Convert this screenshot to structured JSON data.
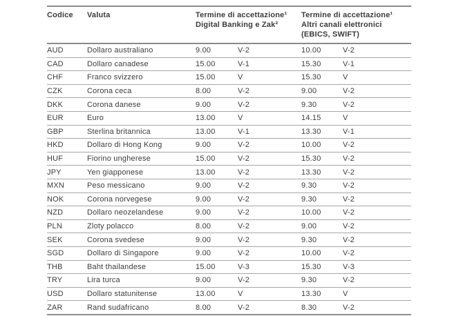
{
  "table": {
    "header": {
      "codice": "Codice",
      "valuta": "Valuta",
      "digital_line1": "Termine di accettazione¹",
      "digital_line2": "Digital Banking e Zak²",
      "other_line1": "Termine di accettazione¹",
      "other_line2": "Altri canali elettronici",
      "other_line3": "(EBICS, SWIFT)"
    },
    "column_keys": [
      "code",
      "currency",
      "digital_time",
      "digital_value",
      "other_time",
      "other_value"
    ],
    "rows": [
      {
        "code": "AUD",
        "currency": "Dollaro australiano",
        "digital_time": "9.00",
        "digital_value": "V-2",
        "other_time": "10.00",
        "other_value": "V-2"
      },
      {
        "code": "CAD",
        "currency": "Dollaro canadese",
        "digital_time": "15.00",
        "digital_value": "V-1",
        "other_time": "15.30",
        "other_value": "V-1"
      },
      {
        "code": "CHF",
        "currency": "Franco svizzero",
        "digital_time": "15.00",
        "digital_value": "V",
        "other_time": "15.30",
        "other_value": "V"
      },
      {
        "code": "CZK",
        "currency": "Corona ceca",
        "digital_time": "8.00",
        "digital_value": "V-2",
        "other_time": "9.00",
        "other_value": "V-2"
      },
      {
        "code": "DKK",
        "currency": "Corona danese",
        "digital_time": "9.00",
        "digital_value": "V-2",
        "other_time": "9.30",
        "other_value": "V-2"
      },
      {
        "code": "EUR",
        "currency": "Euro",
        "digital_time": "13.00",
        "digital_value": "V",
        "other_time": "14.15",
        "other_value": "V"
      },
      {
        "code": "GBP",
        "currency": "Sterlina britannica",
        "digital_time": "13.00",
        "digital_value": "V-1",
        "other_time": "13.30",
        "other_value": "V-1"
      },
      {
        "code": "HKD",
        "currency": "Dollaro di Hong Kong",
        "digital_time": "9.00",
        "digital_value": "V-2",
        "other_time": "10.00",
        "other_value": "V-2"
      },
      {
        "code": "HUF",
        "currency": "Fiorino ungherese",
        "digital_time": "15.00",
        "digital_value": "V-2",
        "other_time": "15.30",
        "other_value": "V-2"
      },
      {
        "code": "JPY",
        "currency": "Yen giapponese",
        "digital_time": "13.00",
        "digital_value": "V-2",
        "other_time": "13.30",
        "other_value": "V-2"
      },
      {
        "code": "MXN",
        "currency": "Peso messicano",
        "digital_time": "9.00",
        "digital_value": "V-2",
        "other_time": "9.30",
        "other_value": "V-2"
      },
      {
        "code": "NOK",
        "currency": "Corona norvegese",
        "digital_time": "9.00",
        "digital_value": "V-2",
        "other_time": "9.30",
        "other_value": "V-2"
      },
      {
        "code": "NZD",
        "currency": "Dollaro neozelandese",
        "digital_time": "9.00",
        "digital_value": "V-2",
        "other_time": "10.00",
        "other_value": "V-2"
      },
      {
        "code": "PLN",
        "currency": "Zloty polacco",
        "digital_time": "8.00",
        "digital_value": "V-2",
        "other_time": "9.00",
        "other_value": "V-2"
      },
      {
        "code": "SEK",
        "currency": "Corona svedese",
        "digital_time": "9.00",
        "digital_value": "V-2",
        "other_time": "9.30",
        "other_value": "V-2"
      },
      {
        "code": "SGD",
        "currency": "Dollaro di Singapore",
        "digital_time": "9.00",
        "digital_value": "V-2",
        "other_time": "10.00",
        "other_value": "V-2"
      },
      {
        "code": "THB",
        "currency": "Baht thailandese",
        "digital_time": "15.00",
        "digital_value": "V-3",
        "other_time": "15.30",
        "other_value": "V-3"
      },
      {
        "code": "TRY",
        "currency": "Lira turca",
        "digital_time": "9.00",
        "digital_value": "V-2",
        "other_time": "9.30",
        "other_value": "V-2"
      },
      {
        "code": "USD",
        "currency": "Dollaro statunitense",
        "digital_time": "13.00",
        "digital_value": "V",
        "other_time": "13.30",
        "other_value": "V"
      },
      {
        "code": "ZAR",
        "currency": "Rand sudafricano",
        "digital_time": "8.00",
        "digital_value": "V-2",
        "other_time": "8.30",
        "other_value": "V-2"
      }
    ],
    "colors": {
      "text": "#3b3b3b",
      "rule_heavy": "#8a8a8a",
      "rule_light": "#a6a6a6",
      "background": "#ffffff"
    }
  }
}
